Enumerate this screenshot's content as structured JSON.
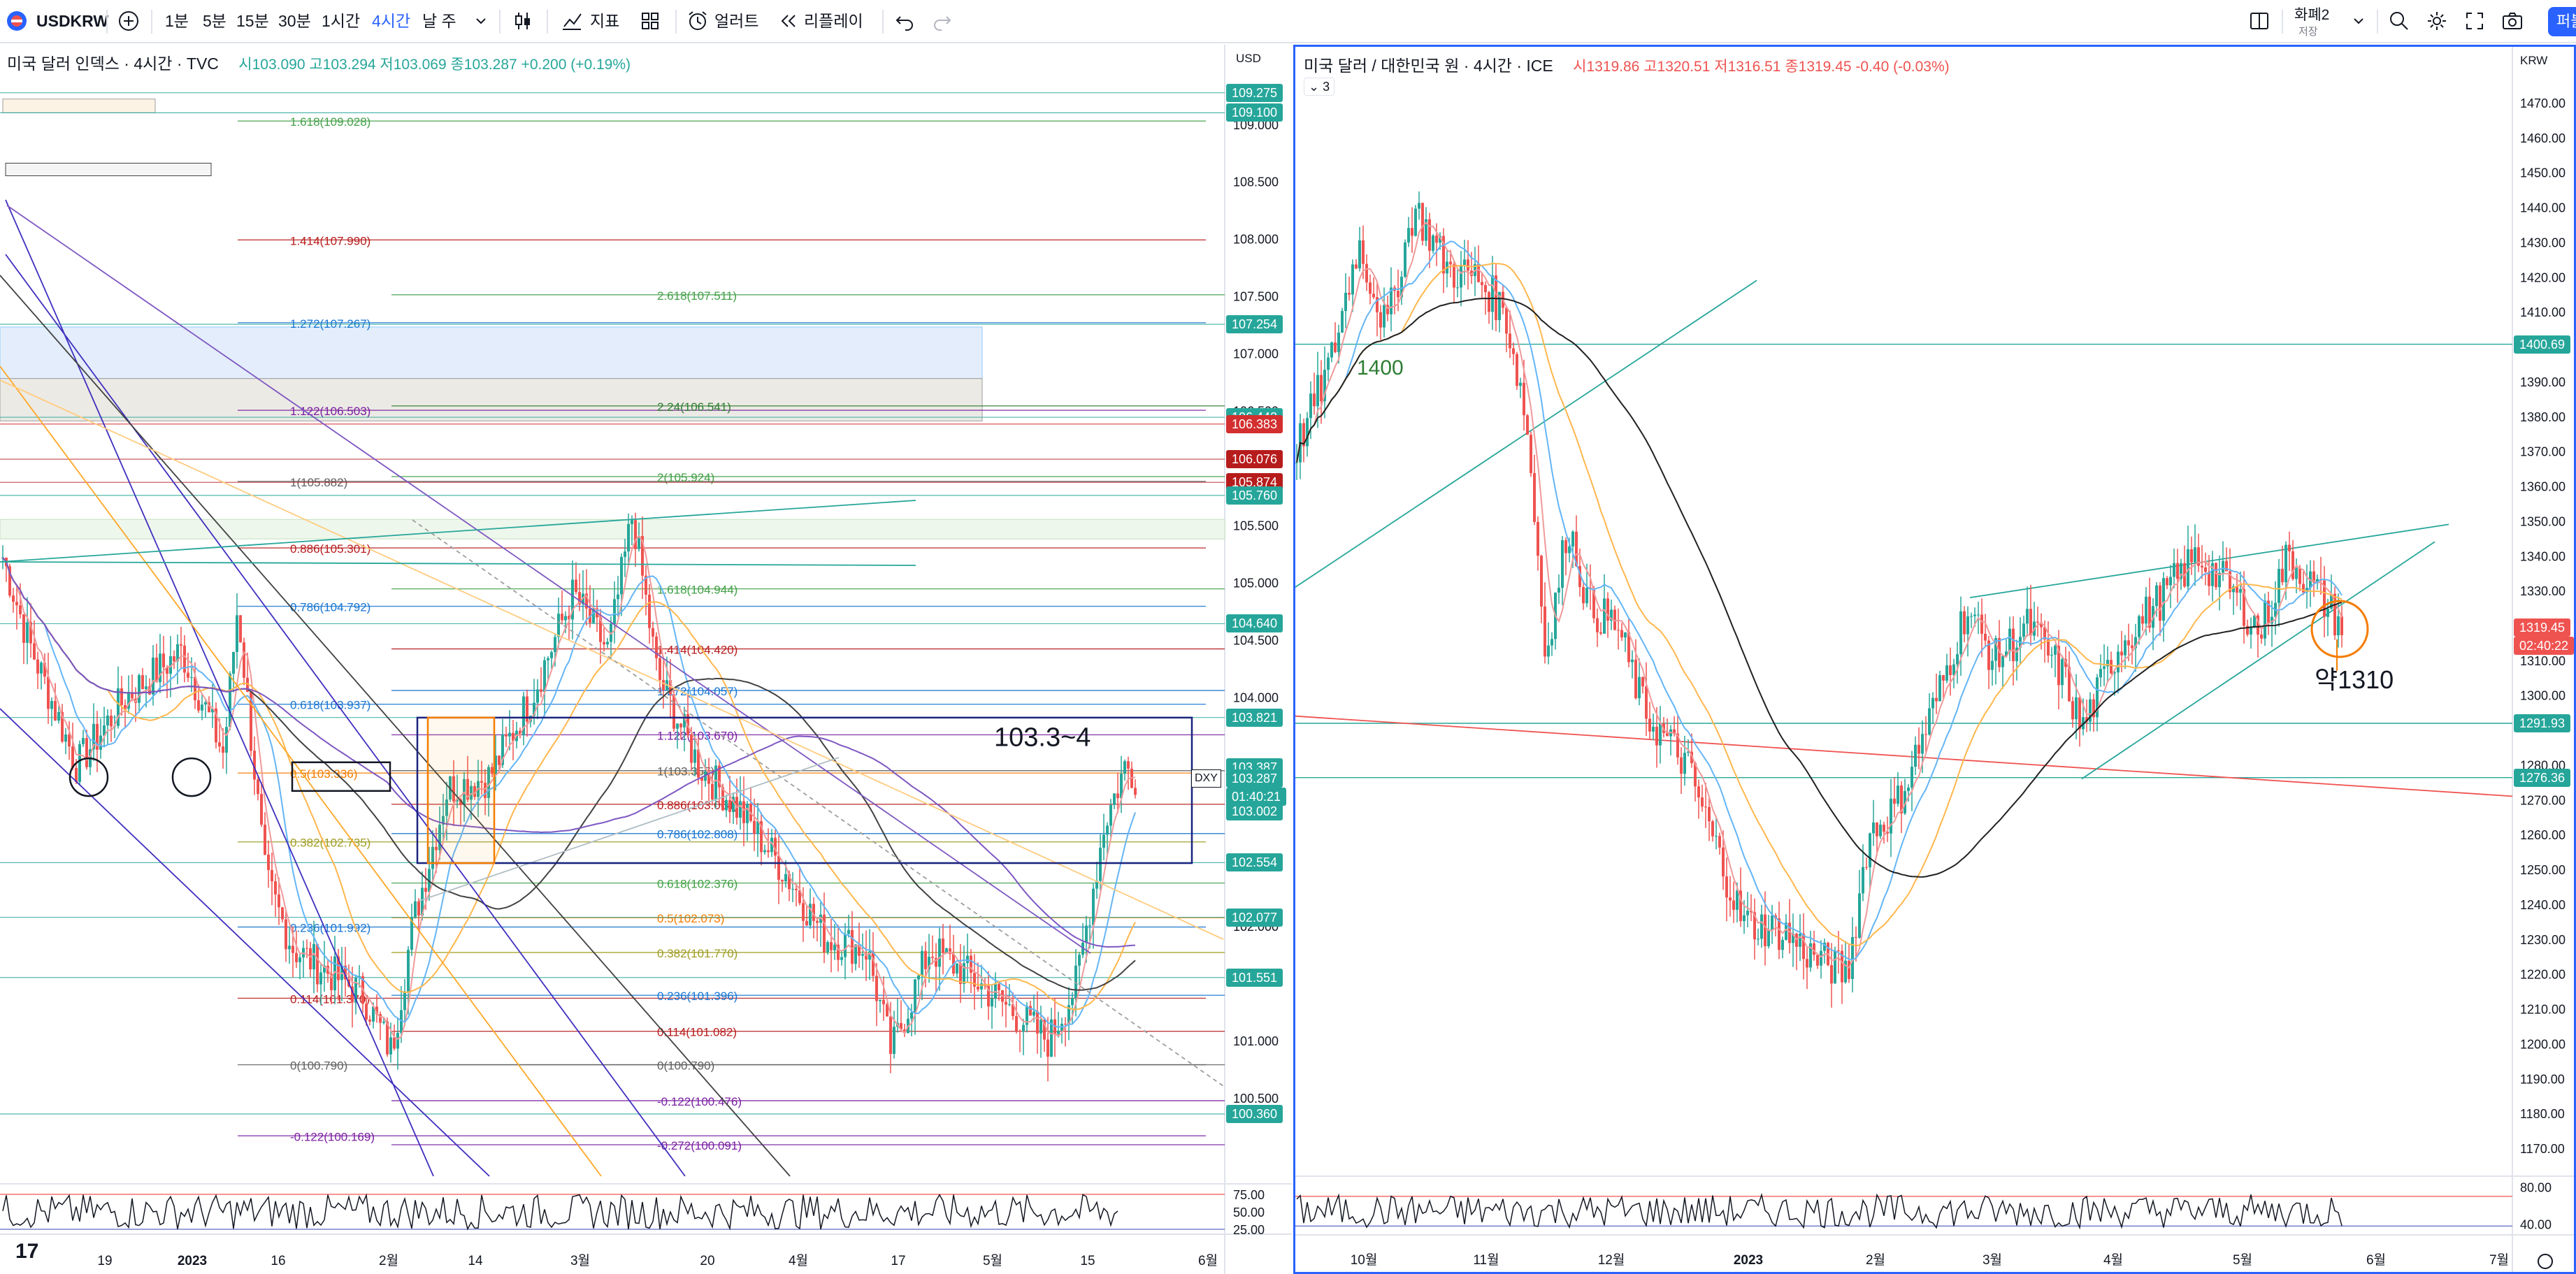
{
  "toolbar": {
    "symbol": "USDKRW",
    "intervals": [
      "1분",
      "5분",
      "15분",
      "30분",
      "1시간",
      "4시간"
    ],
    "active_interval": "4시간",
    "range_menu": "날 주",
    "indicators_label": "지표",
    "alert_label": "얼러트",
    "replay_label": "리플레이",
    "layout_name": "화폐2",
    "layout_status": "저장",
    "publish_label": "퍼블",
    "icons": [
      "avatar-icon",
      "plus-icon",
      "chevron-down-icon",
      "candles-icon",
      "indicators-icon",
      "grid-icon",
      "alarm-icon",
      "replay-icon",
      "undo-icon",
      "redo-icon",
      "layout-icon",
      "search-icon",
      "gear-icon",
      "fullscreen-icon",
      "camera-icon"
    ]
  },
  "colors": {
    "up": "#26a69a",
    "down": "#ef5350",
    "accent": "#2962ff",
    "fib_green": "#43a047",
    "fib_red": "#b71c1c",
    "fib_purple": "#7b1fa2",
    "fib_blue": "#1976d2",
    "fib_orange": "#f57c00",
    "box_navy": "#1a237e"
  },
  "left_chart": {
    "title": "미국 달러 인덱스 · 4시간 · TVC",
    "ohlc": "시103.090  고103.294  저103.069  종103.287  +0.200 (+0.19%)",
    "currency": "USD",
    "price_labels": [
      "109.000",
      "108.500",
      "108.000",
      "107.500",
      "107.000",
      "106.500",
      "105.500",
      "105.000",
      "104.500",
      "104.000",
      "102.000",
      "101.000",
      "100.500"
    ],
    "badges": [
      {
        "text": "109.275",
        "color": "#26a69a"
      },
      {
        "text": "109.100",
        "color": "#26a69a"
      },
      {
        "text": "107.254",
        "color": "#26a69a"
      },
      {
        "text": "106.442",
        "color": "#26a69a"
      },
      {
        "text": "106.383",
        "color": "#d32f2f"
      },
      {
        "text": "106.076",
        "color": "#b71c1c"
      },
      {
        "text": "105.874",
        "color": "#b71c1c"
      },
      {
        "text": "105.760",
        "color": "#26a69a"
      },
      {
        "text": "104.640",
        "color": "#26a69a"
      },
      {
        "text": "103.821",
        "color": "#26a69a"
      },
      {
        "text": "103.387",
        "color": "#26a69a"
      },
      {
        "text": "103.287",
        "color": "#26a69a"
      },
      {
        "text": "01:40:21",
        "color": "#26a69a"
      },
      {
        "text": "103.002",
        "color": "#26a69a"
      },
      {
        "text": "102.554",
        "color": "#26a69a"
      },
      {
        "text": "102.077",
        "color": "#26a69a"
      },
      {
        "text": "101.551",
        "color": "#26a69a"
      },
      {
        "text": "100.360",
        "color": "#26a69a"
      }
    ],
    "dxy_tag": "DXY",
    "fib_labels": [
      "1.618(109.028)",
      "1.414(107.990)",
      "1.272(107.267)",
      "1.122(106.503)",
      "1(105.882)",
      "0.886(105.301)",
      "0.786(104.792)",
      "0.618(103.937)",
      "0.5(103.336)",
      "0.382(102.735)",
      "0.236(101.992)",
      "0.114(101.370)",
      "0(100.790)",
      "-0.122(100.169)",
      "2.618(107.511)",
      "2.24(106.541)",
      "2(105.924)",
      "1.618(104.944)",
      "1.414(104.420)",
      "1.272(104.057)",
      "1.122(103.670)",
      "1(103.357)",
      "0.886(103.064)",
      "0.786(102.808)",
      "0.618(102.376)",
      "0.5(102.073)",
      "0.382(101.770)",
      "0.236(101.396)",
      "0.114(101.082)",
      "0(100.790)",
      "-0.122(100.476)",
      "-0.272(100.091)"
    ],
    "annotation": "103.3~4",
    "time_labels": [
      "19",
      "2023",
      "16",
      "2월",
      "14",
      "3월",
      "20",
      "4월",
      "17",
      "5월",
      "15",
      "6월"
    ],
    "rsi_levels": [
      "75.00",
      "50.00",
      "25.00"
    ]
  },
  "right_chart": {
    "title": "미국 달러 / 대한민국 원 · 4시간 · ICE",
    "ohlc": "시1319.86  고1320.51  저1316.51  종1319.45  -0.40 (-0.03%)",
    "collapse_label": "3",
    "currency": "KRW",
    "price_labels": [
      "1470.00",
      "1460.00",
      "1450.00",
      "1440.00",
      "1430.00",
      "1420.00",
      "1410.00",
      "1390.00",
      "1380.00",
      "1370.00",
      "1360.00",
      "1350.00",
      "1340.00",
      "1330.00",
      "1310.00",
      "1300.00",
      "1280.00",
      "1270.00",
      "1260.00",
      "1250.00",
      "1240.00",
      "1230.00",
      "1220.00",
      "1210.00",
      "1200.00",
      "1190.00",
      "1180.00",
      "1170.00"
    ],
    "badges": [
      {
        "text": "1400.69",
        "color": "#26a69a"
      },
      {
        "text": "1319.45",
        "color": "#ef5350"
      },
      {
        "text": "02:40:22",
        "color": "#ef5350"
      },
      {
        "text": "1291.93",
        "color": "#26a69a"
      },
      {
        "text": "1276.36",
        "color": "#26a69a"
      }
    ],
    "annotations": [
      "1400",
      "약1310"
    ],
    "time_labels": [
      "10월",
      "11월",
      "12월",
      "2023",
      "2월",
      "3월",
      "4월",
      "5월",
      "6월",
      "7월"
    ],
    "rsi_levels": [
      "80.00",
      "40.00"
    ]
  }
}
